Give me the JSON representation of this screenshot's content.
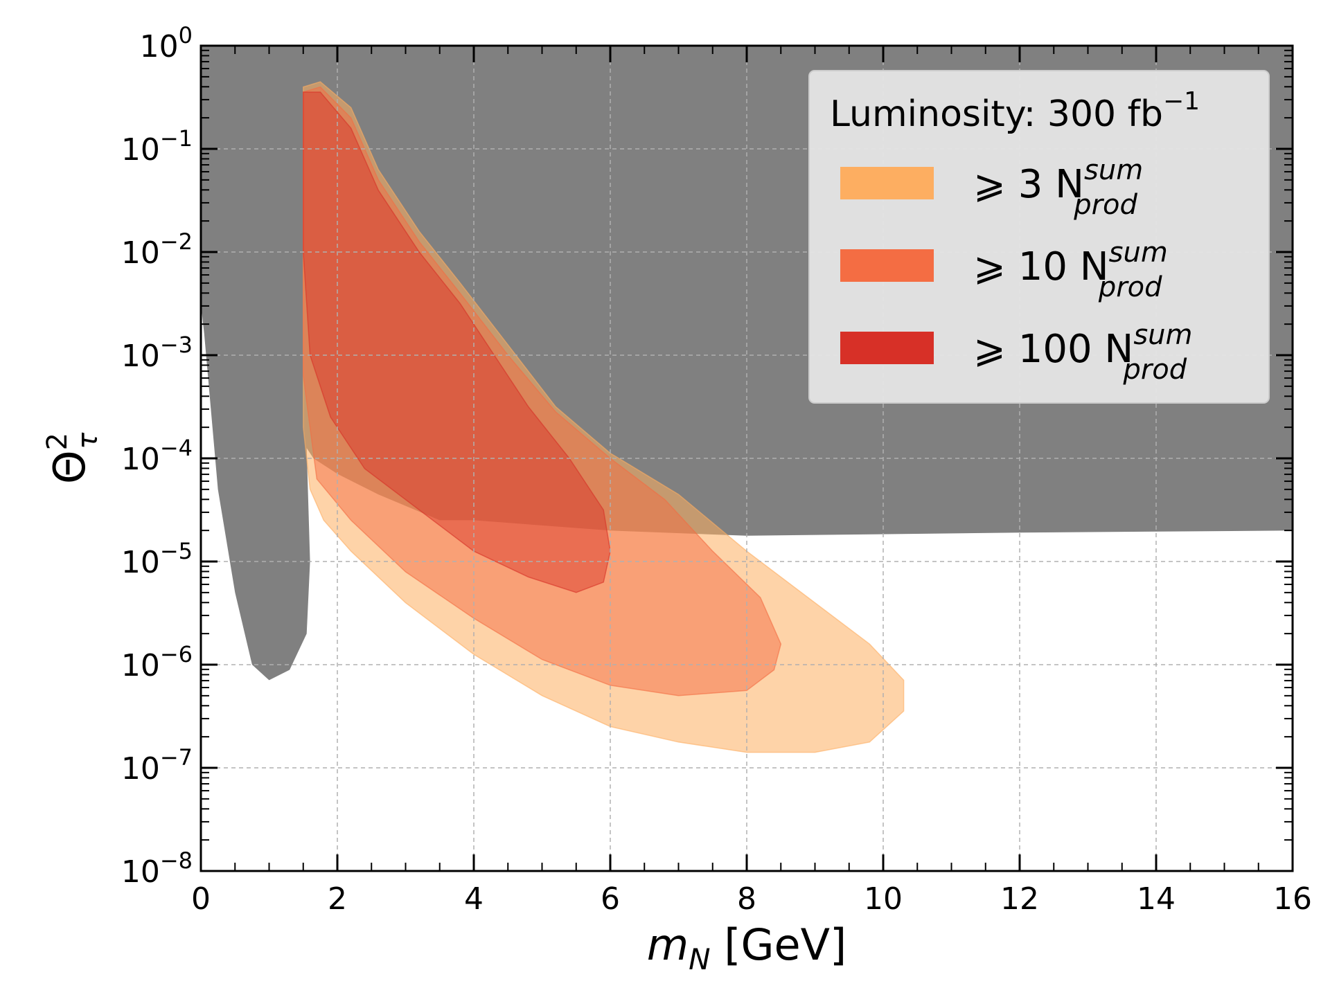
{
  "chart_data": {
    "type": "area",
    "xlabel": {
      "main": "m",
      "sub": "N",
      "unit": " [GeV]"
    },
    "ylabel": {
      "main": "Θ",
      "sup": "2",
      "sub": "τ"
    },
    "xlim": [
      0,
      16
    ],
    "ylim_log10": [
      -8,
      0
    ],
    "yscale": "log",
    "grid": true,
    "x_ticks": [
      0,
      2,
      4,
      6,
      8,
      10,
      12,
      14,
      16
    ],
    "y_ticks": [
      {
        "base": "10",
        "exp": "0",
        "log": 0
      },
      {
        "base": "10",
        "exp": "−1",
        "log": -1
      },
      {
        "base": "10",
        "exp": "−2",
        "log": -2
      },
      {
        "base": "10",
        "exp": "−3",
        "log": -3
      },
      {
        "base": "10",
        "exp": "−4",
        "log": -4
      },
      {
        "base": "10",
        "exp": "−5",
        "log": -5
      },
      {
        "base": "10",
        "exp": "−6",
        "log": -6
      },
      {
        "base": "10",
        "exp": "−7",
        "log": -7
      },
      {
        "base": "10",
        "exp": "−8",
        "log": -8
      }
    ],
    "legend": {
      "placement": "top-right",
      "title": {
        "text": "Luminosity: 300 fb",
        "sup": "−1"
      },
      "entries": [
        {
          "prefix": "⩾ 3 N",
          "sup": "sum",
          "sub": "prod",
          "color": "#fdae61"
        },
        {
          "prefix": "⩾ 10 N",
          "sup": "sum",
          "sub": "prod",
          "color": "#f46d43"
        },
        {
          "prefix": "⩾ 100 N",
          "sup": "sum",
          "sub": "prod",
          "color": "#d73027"
        }
      ]
    },
    "colors": {
      "excluded": "#808080",
      "region_3": "#fdae61",
      "region_10": "#f46d43",
      "region_100": "#d73027"
    },
    "series": [
      {
        "name": "excluded",
        "color": "#808080",
        "opacity": 1,
        "points": [
          [
            0,
            0
          ],
          [
            16,
            0
          ],
          [
            16,
            -4.7
          ],
          [
            12,
            -4.72
          ],
          [
            8,
            -4.75
          ],
          [
            6,
            -4.7
          ],
          [
            5,
            -4.65
          ],
          [
            4,
            -4.6
          ],
          [
            3.5,
            -4.6
          ],
          [
            2.6,
            -4.35
          ],
          [
            2,
            -4.15
          ],
          [
            1.65,
            -4.0
          ],
          [
            1.55,
            -3.9
          ],
          [
            1.6,
            -5.0
          ],
          [
            1.55,
            -5.7
          ],
          [
            1.3,
            -6.05
          ],
          [
            1.0,
            -6.15
          ],
          [
            0.75,
            -6.0
          ],
          [
            0.5,
            -5.3
          ],
          [
            0.25,
            -4.3
          ],
          [
            0.05,
            -2.8
          ],
          [
            0,
            -2.5
          ]
        ]
      },
      {
        "name": "≥ 3",
        "color": "#fdae61",
        "opacity": 0.55,
        "points": [
          [
            1.5,
            -0.4
          ],
          [
            1.75,
            -0.35
          ],
          [
            2.2,
            -0.6
          ],
          [
            2.6,
            -1.2
          ],
          [
            3.2,
            -1.8
          ],
          [
            3.8,
            -2.3
          ],
          [
            4.5,
            -2.9
          ],
          [
            5.2,
            -3.5
          ],
          [
            6.0,
            -3.95
          ],
          [
            7.0,
            -4.35
          ],
          [
            8.0,
            -4.9
          ],
          [
            9.0,
            -5.4
          ],
          [
            9.8,
            -5.8
          ],
          [
            10.3,
            -6.15
          ],
          [
            10.3,
            -6.45
          ],
          [
            9.8,
            -6.75
          ],
          [
            9.0,
            -6.85
          ],
          [
            8.0,
            -6.85
          ],
          [
            7.0,
            -6.75
          ],
          [
            6.0,
            -6.6
          ],
          [
            5.0,
            -6.3
          ],
          [
            4.0,
            -5.9
          ],
          [
            3.0,
            -5.4
          ],
          [
            2.2,
            -4.9
          ],
          [
            1.8,
            -4.6
          ],
          [
            1.6,
            -4.3
          ],
          [
            1.5,
            -3.7
          ]
        ]
      },
      {
        "name": "≥ 10",
        "color": "#f46d43",
        "opacity": 0.5,
        "points": [
          [
            1.5,
            -0.45
          ],
          [
            1.75,
            -0.4
          ],
          [
            2.2,
            -0.7
          ],
          [
            2.6,
            -1.3
          ],
          [
            3.2,
            -1.9
          ],
          [
            3.8,
            -2.4
          ],
          [
            4.5,
            -3.0
          ],
          [
            5.2,
            -3.55
          ],
          [
            6.0,
            -4.0
          ],
          [
            6.8,
            -4.4
          ],
          [
            7.5,
            -4.9
          ],
          [
            8.2,
            -5.35
          ],
          [
            8.5,
            -5.8
          ],
          [
            8.4,
            -6.05
          ],
          [
            8.0,
            -6.25
          ],
          [
            7.0,
            -6.3
          ],
          [
            6.0,
            -6.2
          ],
          [
            5.0,
            -5.95
          ],
          [
            4.0,
            -5.55
          ],
          [
            3.0,
            -5.1
          ],
          [
            2.2,
            -4.6
          ],
          [
            1.7,
            -4.2
          ],
          [
            1.5,
            -3.2
          ]
        ]
      },
      {
        "name": "≥ 100",
        "color": "#d73027",
        "opacity": 0.45,
        "points": [
          [
            1.5,
            -0.45
          ],
          [
            1.75,
            -0.45
          ],
          [
            2.2,
            -0.8
          ],
          [
            2.6,
            -1.4
          ],
          [
            3.2,
            -2.0
          ],
          [
            3.8,
            -2.5
          ],
          [
            4.3,
            -3.0
          ],
          [
            4.8,
            -3.5
          ],
          [
            5.4,
            -4.0
          ],
          [
            5.9,
            -4.5
          ],
          [
            6.0,
            -4.9
          ],
          [
            5.9,
            -5.2
          ],
          [
            5.5,
            -5.3
          ],
          [
            4.8,
            -5.15
          ],
          [
            4.0,
            -4.9
          ],
          [
            3.2,
            -4.5
          ],
          [
            2.4,
            -4.1
          ],
          [
            1.9,
            -3.6
          ],
          [
            1.6,
            -3.0
          ],
          [
            1.5,
            -2.0
          ]
        ]
      }
    ]
  }
}
